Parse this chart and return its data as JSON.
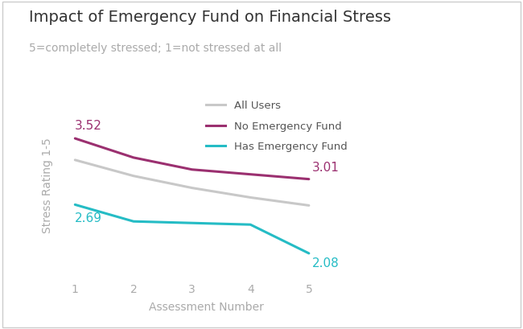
{
  "title": "Impact of Emergency Fund on Financial Stress",
  "subtitle": "5=completely stressed; 1=not stressed at all",
  "xlabel": "Assessment Number",
  "ylabel": "Stress Rating 1-5",
  "x": [
    1,
    2,
    3,
    4,
    5
  ],
  "all_users": [
    3.25,
    3.05,
    2.9,
    2.78,
    2.68
  ],
  "no_emergency": [
    3.52,
    3.28,
    3.13,
    3.07,
    3.01
  ],
  "has_emergency": [
    2.69,
    2.48,
    2.46,
    2.44,
    2.08
  ],
  "color_all": "#c8c8c8",
  "color_no_emergency": "#9b3070",
  "color_has_emergency": "#25bcc5",
  "label_all": "All Users",
  "label_no_emergency": "No Emergency Fund",
  "label_has_emergency": "Has Emergency Fund",
  "annotation_no_start": "3.52",
  "annotation_no_end": "3.01",
  "annotation_has_start": "2.69",
  "annotation_has_end": "2.08",
  "xlim": [
    0.7,
    5.8
  ],
  "ylim": [
    1.75,
    4.1
  ],
  "bg_color": "#ffffff",
  "title_fontsize": 14,
  "subtitle_fontsize": 10,
  "label_fontsize": 10,
  "tick_fontsize": 10,
  "annotation_fontsize": 11,
  "linewidth": 2.2
}
